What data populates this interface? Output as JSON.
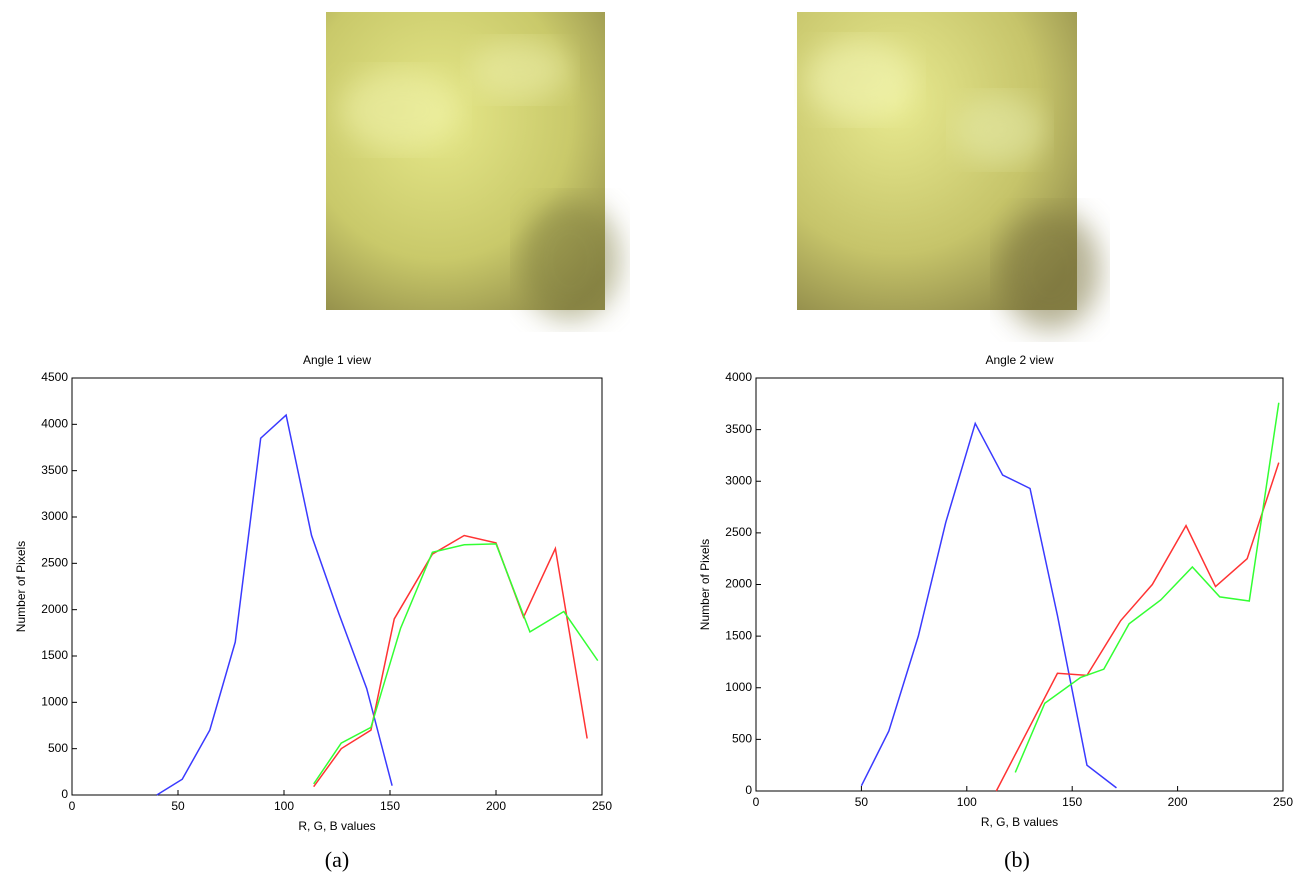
{
  "chart_data": [
    {
      "type": "line",
      "title": "Angle 1 view",
      "xlabel": "R, G, B values",
      "ylabel": "Number of Pixels",
      "caption": "(a)",
      "xlim": [
        0,
        250
      ],
      "ylim": [
        0,
        4500
      ],
      "xticks": [
        0,
        50,
        100,
        150,
        200,
        250
      ],
      "yticks": [
        0,
        500,
        1000,
        1500,
        2000,
        2500,
        3000,
        3500,
        4000,
        4500
      ],
      "series": [
        {
          "color": "#3a3aff",
          "x": [
            40,
            52,
            65,
            77,
            89,
            101,
            113,
            126,
            139,
            151
          ],
          "values": [
            0,
            170,
            700,
            1650,
            3850,
            4100,
            2800,
            1950,
            1150,
            100
          ]
        },
        {
          "color": "#ff3333",
          "x": [
            114,
            127,
            141,
            152,
            170,
            185,
            200,
            213,
            228,
            243
          ],
          "values": [
            90,
            500,
            700,
            1900,
            2600,
            2800,
            2720,
            1920,
            2660,
            610
          ]
        },
        {
          "color": "#33ff33",
          "x": [
            114,
            127,
            141,
            155,
            170,
            185,
            200,
            216,
            232,
            248
          ],
          "values": [
            120,
            560,
            730,
            1800,
            2620,
            2700,
            2710,
            1760,
            1980,
            1450
          ]
        }
      ]
    },
    {
      "type": "line",
      "title": "Angle 2 view",
      "xlabel": "R, G, B values",
      "ylabel": "Number of Pixels",
      "caption": "(b)",
      "xlim": [
        0,
        250
      ],
      "ylim": [
        0,
        4000
      ],
      "xticks": [
        0,
        50,
        100,
        150,
        200,
        250
      ],
      "yticks": [
        0,
        500,
        1000,
        1500,
        2000,
        2500,
        3000,
        3500,
        4000
      ],
      "series": [
        {
          "color": "#3a3aff",
          "x": [
            50,
            63,
            77,
            90,
            104,
            117,
            130,
            143,
            157,
            171
          ],
          "values": [
            50,
            580,
            1500,
            2600,
            3560,
            3060,
            2930,
            1700,
            250,
            30
          ]
        },
        {
          "color": "#ff3333",
          "x": [
            114,
            143,
            157,
            173,
            188,
            204,
            218,
            233,
            248
          ],
          "values": [
            0,
            1140,
            1120,
            1650,
            2000,
            2570,
            1980,
            2250,
            3180
          ]
        },
        {
          "color": "#33ff33",
          "x": [
            123,
            137,
            154,
            165,
            177,
            192,
            207,
            220,
            234,
            248
          ],
          "values": [
            180,
            850,
            1100,
            1180,
            1620,
            1850,
            2170,
            1880,
            1840,
            3760
          ]
        }
      ]
    }
  ]
}
